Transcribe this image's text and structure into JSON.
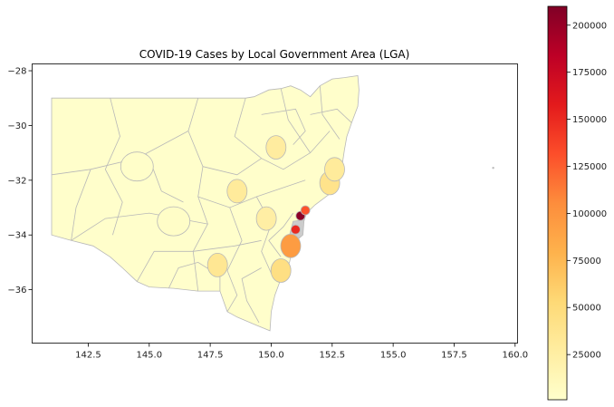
{
  "chart_data": {
    "type": "choropleth-map",
    "title": "COVID-19 Cases by Local Government Area (LGA)",
    "xlabel": "",
    "ylabel": "",
    "xlim": [
      140.2,
      160.1
    ],
    "ylim": [
      -37.95,
      -27.75
    ],
    "x_ticks": [
      142.5,
      145.0,
      147.5,
      150.0,
      152.5,
      155.0,
      157.5,
      160.0
    ],
    "x_tick_labels": [
      "142.5",
      "145.0",
      "147.5",
      "150.0",
      "152.5",
      "155.0",
      "157.5",
      "160.0"
    ],
    "y_ticks": [
      -28,
      -30,
      -32,
      -34,
      -36
    ],
    "y_tick_labels": [
      "−28",
      "−30",
      "−32",
      "−34",
      "−36"
    ],
    "colorbar": {
      "colormap": "YlOrRd",
      "range": [
        1000,
        210000
      ],
      "ticks": [
        25000,
        50000,
        75000,
        100000,
        125000,
        150000,
        175000,
        200000
      ],
      "tick_labels": [
        "25000",
        "50000",
        "75000",
        "100000",
        "125000",
        "150000",
        "175000",
        "200000"
      ]
    },
    "regions": [
      {
        "lon": 144.5,
        "lat": -31.5,
        "cases": 3000
      },
      {
        "lon": 146.0,
        "lat": -33.5,
        "cases": 4000
      },
      {
        "lon": 148.6,
        "lat": -32.4,
        "cases": 30000
      },
      {
        "lon": 149.8,
        "lat": -33.4,
        "cases": 25000
      },
      {
        "lon": 147.8,
        "lat": -35.1,
        "cases": 35000
      },
      {
        "lon": 150.2,
        "lat": -30.8,
        "cases": 28000
      },
      {
        "lon": 152.4,
        "lat": -32.1,
        "cases": 40000
      },
      {
        "lon": 152.6,
        "lat": -31.6,
        "cases": 30000
      },
      {
        "lon": 150.4,
        "lat": -35.3,
        "cases": 45000
      },
      {
        "lon": 150.8,
        "lat": -34.4,
        "cases": 95000
      },
      {
        "lon": 151.0,
        "lat": -33.8,
        "cases": 150000
      },
      {
        "lon": 151.2,
        "lat": -33.3,
        "cases": 205000
      },
      {
        "lon": 151.4,
        "lat": -33.1,
        "cases": 130000
      }
    ],
    "outlier_lon": 159.1,
    "outlier_lat": -31.55
  },
  "colors": {
    "boundary": "#b8b8b8",
    "background": "#ffffff",
    "axis": "#000000",
    "base_region": "#fffecb",
    "light_region": "#fff5bd",
    "metro": "#cccccc"
  }
}
